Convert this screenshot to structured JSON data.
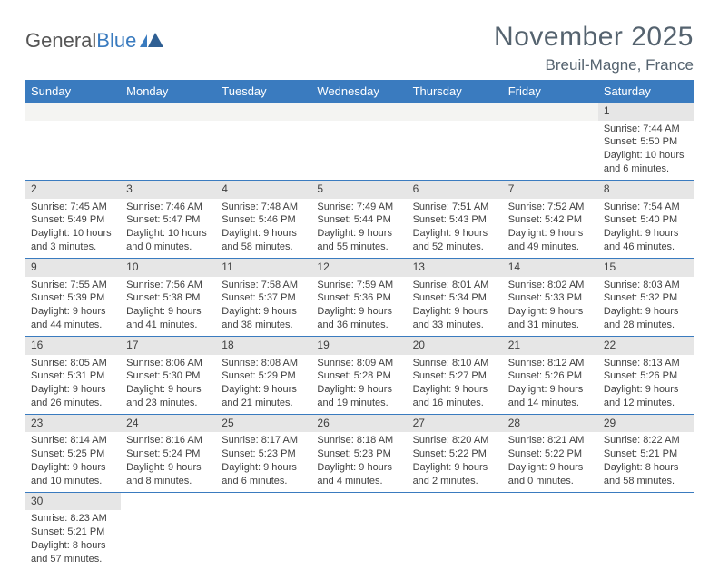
{
  "logo": {
    "text1": "General",
    "text2": "Blue"
  },
  "header": {
    "title": "November 2025",
    "location": "Breuil-Magne, France"
  },
  "weekdays": [
    "Sunday",
    "Monday",
    "Tuesday",
    "Wednesday",
    "Thursday",
    "Friday",
    "Saturday"
  ],
  "colors": {
    "header_bg": "#3a7bbf",
    "daynum_bg": "#e6e6e6",
    "border": "#3a7bbf",
    "title_color": "#55636f"
  },
  "weeks": [
    [
      null,
      null,
      null,
      null,
      null,
      null,
      {
        "n": "1",
        "sr": "Sunrise: 7:44 AM",
        "ss": "Sunset: 5:50 PM",
        "d1": "Daylight: 10 hours",
        "d2": "and 6 minutes."
      }
    ],
    [
      {
        "n": "2",
        "sr": "Sunrise: 7:45 AM",
        "ss": "Sunset: 5:49 PM",
        "d1": "Daylight: 10 hours",
        "d2": "and 3 minutes."
      },
      {
        "n": "3",
        "sr": "Sunrise: 7:46 AM",
        "ss": "Sunset: 5:47 PM",
        "d1": "Daylight: 10 hours",
        "d2": "and 0 minutes."
      },
      {
        "n": "4",
        "sr": "Sunrise: 7:48 AM",
        "ss": "Sunset: 5:46 PM",
        "d1": "Daylight: 9 hours",
        "d2": "and 58 minutes."
      },
      {
        "n": "5",
        "sr": "Sunrise: 7:49 AM",
        "ss": "Sunset: 5:44 PM",
        "d1": "Daylight: 9 hours",
        "d2": "and 55 minutes."
      },
      {
        "n": "6",
        "sr": "Sunrise: 7:51 AM",
        "ss": "Sunset: 5:43 PM",
        "d1": "Daylight: 9 hours",
        "d2": "and 52 minutes."
      },
      {
        "n": "7",
        "sr": "Sunrise: 7:52 AM",
        "ss": "Sunset: 5:42 PM",
        "d1": "Daylight: 9 hours",
        "d2": "and 49 minutes."
      },
      {
        "n": "8",
        "sr": "Sunrise: 7:54 AM",
        "ss": "Sunset: 5:40 PM",
        "d1": "Daylight: 9 hours",
        "d2": "and 46 minutes."
      }
    ],
    [
      {
        "n": "9",
        "sr": "Sunrise: 7:55 AM",
        "ss": "Sunset: 5:39 PM",
        "d1": "Daylight: 9 hours",
        "d2": "and 44 minutes."
      },
      {
        "n": "10",
        "sr": "Sunrise: 7:56 AM",
        "ss": "Sunset: 5:38 PM",
        "d1": "Daylight: 9 hours",
        "d2": "and 41 minutes."
      },
      {
        "n": "11",
        "sr": "Sunrise: 7:58 AM",
        "ss": "Sunset: 5:37 PM",
        "d1": "Daylight: 9 hours",
        "d2": "and 38 minutes."
      },
      {
        "n": "12",
        "sr": "Sunrise: 7:59 AM",
        "ss": "Sunset: 5:36 PM",
        "d1": "Daylight: 9 hours",
        "d2": "and 36 minutes."
      },
      {
        "n": "13",
        "sr": "Sunrise: 8:01 AM",
        "ss": "Sunset: 5:34 PM",
        "d1": "Daylight: 9 hours",
        "d2": "and 33 minutes."
      },
      {
        "n": "14",
        "sr": "Sunrise: 8:02 AM",
        "ss": "Sunset: 5:33 PM",
        "d1": "Daylight: 9 hours",
        "d2": "and 31 minutes."
      },
      {
        "n": "15",
        "sr": "Sunrise: 8:03 AM",
        "ss": "Sunset: 5:32 PM",
        "d1": "Daylight: 9 hours",
        "d2": "and 28 minutes."
      }
    ],
    [
      {
        "n": "16",
        "sr": "Sunrise: 8:05 AM",
        "ss": "Sunset: 5:31 PM",
        "d1": "Daylight: 9 hours",
        "d2": "and 26 minutes."
      },
      {
        "n": "17",
        "sr": "Sunrise: 8:06 AM",
        "ss": "Sunset: 5:30 PM",
        "d1": "Daylight: 9 hours",
        "d2": "and 23 minutes."
      },
      {
        "n": "18",
        "sr": "Sunrise: 8:08 AM",
        "ss": "Sunset: 5:29 PM",
        "d1": "Daylight: 9 hours",
        "d2": "and 21 minutes."
      },
      {
        "n": "19",
        "sr": "Sunrise: 8:09 AM",
        "ss": "Sunset: 5:28 PM",
        "d1": "Daylight: 9 hours",
        "d2": "and 19 minutes."
      },
      {
        "n": "20",
        "sr": "Sunrise: 8:10 AM",
        "ss": "Sunset: 5:27 PM",
        "d1": "Daylight: 9 hours",
        "d2": "and 16 minutes."
      },
      {
        "n": "21",
        "sr": "Sunrise: 8:12 AM",
        "ss": "Sunset: 5:26 PM",
        "d1": "Daylight: 9 hours",
        "d2": "and 14 minutes."
      },
      {
        "n": "22",
        "sr": "Sunrise: 8:13 AM",
        "ss": "Sunset: 5:26 PM",
        "d1": "Daylight: 9 hours",
        "d2": "and 12 minutes."
      }
    ],
    [
      {
        "n": "23",
        "sr": "Sunrise: 8:14 AM",
        "ss": "Sunset: 5:25 PM",
        "d1": "Daylight: 9 hours",
        "d2": "and 10 minutes."
      },
      {
        "n": "24",
        "sr": "Sunrise: 8:16 AM",
        "ss": "Sunset: 5:24 PM",
        "d1": "Daylight: 9 hours",
        "d2": "and 8 minutes."
      },
      {
        "n": "25",
        "sr": "Sunrise: 8:17 AM",
        "ss": "Sunset: 5:23 PM",
        "d1": "Daylight: 9 hours",
        "d2": "and 6 minutes."
      },
      {
        "n": "26",
        "sr": "Sunrise: 8:18 AM",
        "ss": "Sunset: 5:23 PM",
        "d1": "Daylight: 9 hours",
        "d2": "and 4 minutes."
      },
      {
        "n": "27",
        "sr": "Sunrise: 8:20 AM",
        "ss": "Sunset: 5:22 PM",
        "d1": "Daylight: 9 hours",
        "d2": "and 2 minutes."
      },
      {
        "n": "28",
        "sr": "Sunrise: 8:21 AM",
        "ss": "Sunset: 5:22 PM",
        "d1": "Daylight: 9 hours",
        "d2": "and 0 minutes."
      },
      {
        "n": "29",
        "sr": "Sunrise: 8:22 AM",
        "ss": "Sunset: 5:21 PM",
        "d1": "Daylight: 8 hours",
        "d2": "and 58 minutes."
      }
    ],
    [
      {
        "n": "30",
        "sr": "Sunrise: 8:23 AM",
        "ss": "Sunset: 5:21 PM",
        "d1": "Daylight: 8 hours",
        "d2": "and 57 minutes."
      },
      null,
      null,
      null,
      null,
      null,
      null
    ]
  ]
}
